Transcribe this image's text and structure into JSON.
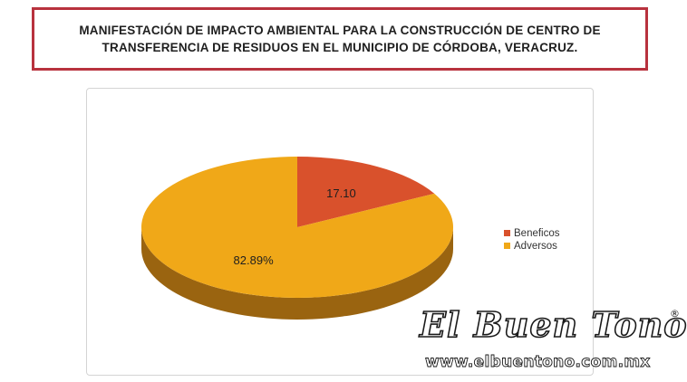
{
  "header": {
    "title_line1": "MANIFESTACIÓN DE IMPACTO AMBIENTAL PARA LA CONSTRUCCIÓN DE CENTRO DE",
    "title_line2": "TRANSFERENCIA DE RESIDUOS EN EL MUNICIPIO DE CÓRDOBA, VERACRUZ."
  },
  "chart_data": {
    "type": "pie",
    "style": "3d",
    "slices": [
      {
        "label": "Beneficos",
        "value": 17.1,
        "data_label": "17.10",
        "color": "#d9512c",
        "side_color": "#9a3415"
      },
      {
        "label": "Adversos",
        "value": 82.89,
        "data_label": "82.89%",
        "color": "#f0a818",
        "side_color": "#9a6410"
      }
    ],
    "legend_position": "right"
  },
  "watermark": {
    "logo_text": "El Buen Tono",
    "registered_mark": "®",
    "url": "www.elbuentono.com.mx"
  }
}
